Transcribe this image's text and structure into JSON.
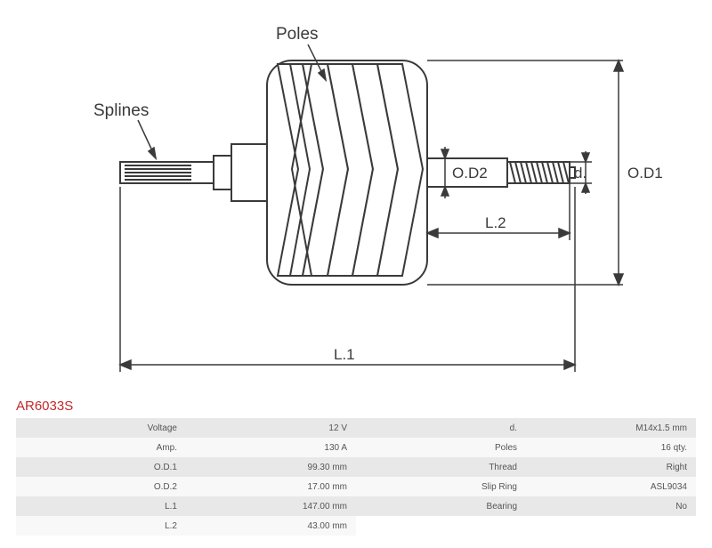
{
  "part_code": "AR6033S",
  "diagram": {
    "annotations": {
      "poles_label": "Poles",
      "splines_label": "Splines",
      "dim_od1": "O.D1",
      "dim_od2": "O.D2",
      "dim_d": "d.",
      "dim_l1": "L.1",
      "dim_l2": "L.2"
    },
    "colors": {
      "stroke": "#3a3a3a",
      "fill_bg": "#ffffff",
      "text": "#3a3a3a",
      "accent": "#c1282b",
      "table_row_odd": "#e8e8e8",
      "table_row_even": "#f8f8f8",
      "table_text": "#555555"
    },
    "stroke_width": 2
  },
  "specs_left": [
    {
      "label": "Voltage",
      "value": "12 V"
    },
    {
      "label": "Amp.",
      "value": "130 A"
    },
    {
      "label": "O.D.1",
      "value": "99.30 mm"
    },
    {
      "label": "O.D.2",
      "value": "17.00 mm"
    },
    {
      "label": "L.1",
      "value": "147.00 mm"
    },
    {
      "label": "L.2",
      "value": "43.00 mm"
    }
  ],
  "specs_right": [
    {
      "label": "d.",
      "value": "M14x1.5 mm"
    },
    {
      "label": "Poles",
      "value": "16 qty."
    },
    {
      "label": "Thread",
      "value": "Right"
    },
    {
      "label": "Slip Ring",
      "value": "ASL9034"
    },
    {
      "label": "Bearing",
      "value": "No"
    }
  ]
}
